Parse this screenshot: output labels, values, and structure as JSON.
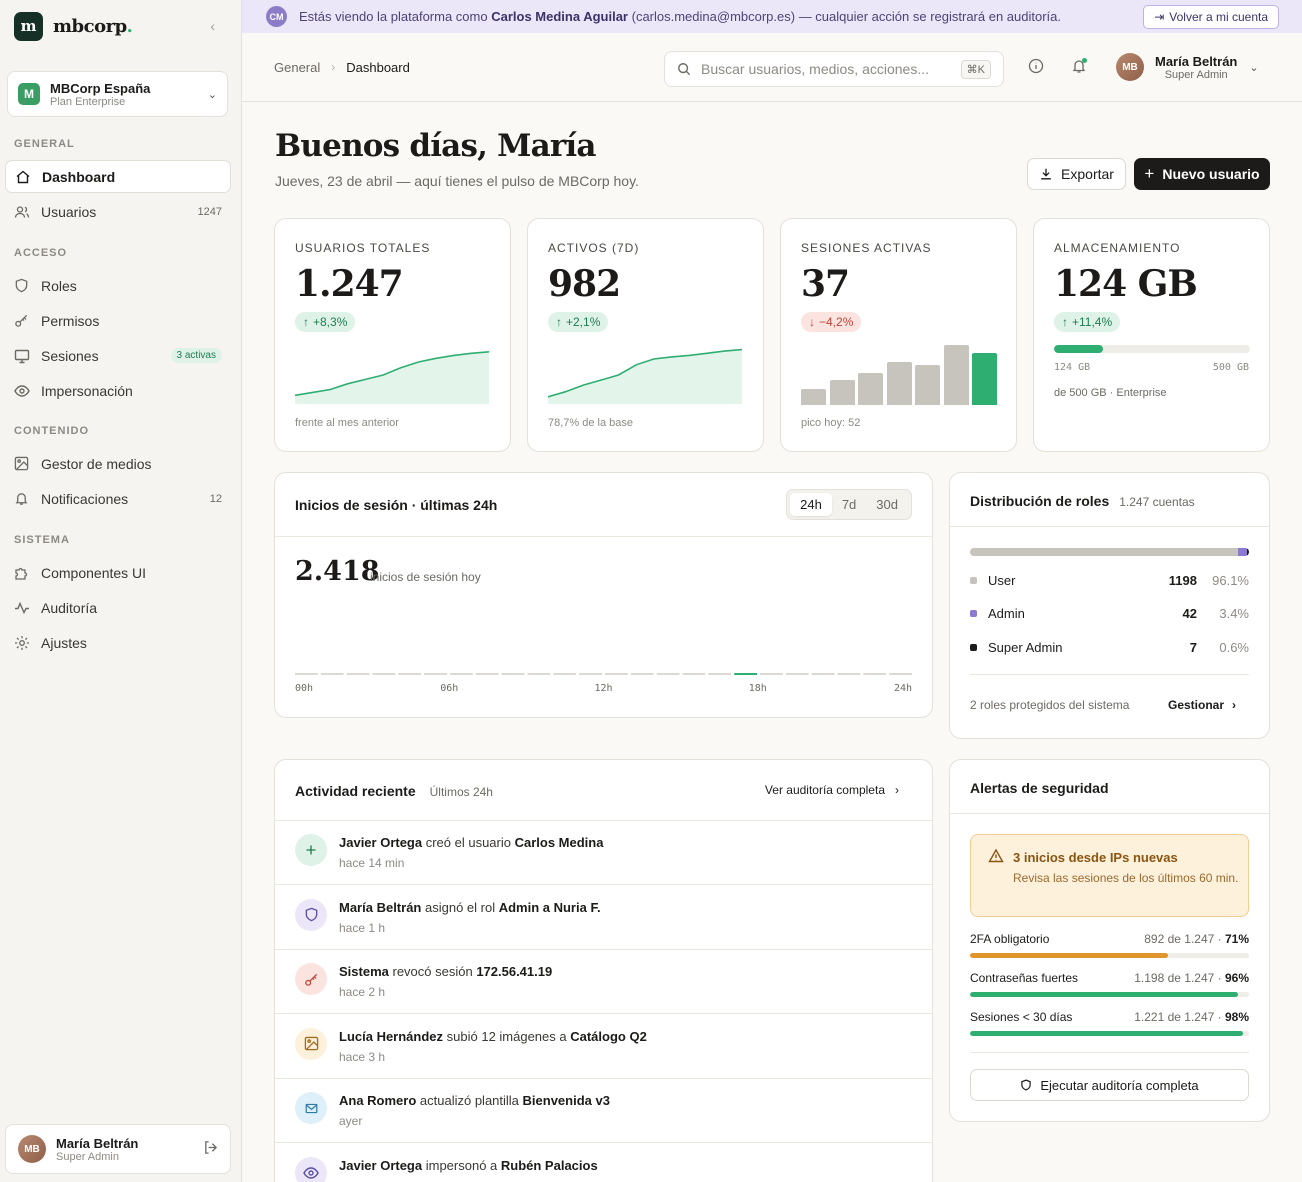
{
  "app": {
    "logo_letter": "m",
    "logo_name": "mbcorp",
    "logo_dot": "."
  },
  "org": {
    "badge": "M",
    "name": "MBCorp España",
    "plan": "Plan Enterprise"
  },
  "sidebar": {
    "sections": [
      {
        "title": "GENERAL",
        "items": [
          {
            "label": "Dashboard",
            "icon": "home-icon",
            "active": true
          },
          {
            "label": "Usuarios",
            "icon": "users-icon",
            "count": "1247"
          }
        ]
      },
      {
        "title": "ACCESO",
        "items": [
          {
            "label": "Roles",
            "icon": "shield-icon"
          },
          {
            "label": "Permisos",
            "icon": "key-icon"
          },
          {
            "label": "Sesiones",
            "icon": "monitor-icon",
            "pill": "3 activas"
          },
          {
            "label": "Impersonación",
            "icon": "eye-icon"
          }
        ]
      },
      {
        "title": "CONTENIDO",
        "items": [
          {
            "label": "Gestor de medios",
            "icon": "image-icon"
          },
          {
            "label": "Notificaciones",
            "icon": "bell-icon",
            "count": "12"
          }
        ]
      },
      {
        "title": "SISTEMA",
        "items": [
          {
            "label": "Componentes UI",
            "icon": "puzzle-icon"
          },
          {
            "label": "Auditoría",
            "icon": "activity-icon"
          },
          {
            "label": "Ajustes",
            "icon": "gear-icon"
          }
        ]
      }
    ],
    "user": {
      "initials": "MB",
      "name": "María Beltrán",
      "role": "Super Admin"
    }
  },
  "banner": {
    "initials": "CM",
    "text_pre": "Estás viendo la plataforma como ",
    "name": "Carlos Medina Aguilar",
    "text_post": " (carlos.medina@mbcorp.es) — cualquier acción se registrará en auditoría.",
    "button": "Volver a mi cuenta"
  },
  "topbar": {
    "crumb_root": "General",
    "crumb_current": "Dashboard",
    "search_placeholder": "Buscar usuarios, medios, acciones...",
    "shortcut": "⌘K",
    "user": {
      "initials": "MB",
      "name": "María Beltrán",
      "role": "Super Admin"
    }
  },
  "header": {
    "greeting": "Buenos días, María",
    "subtitle": "Jueves, 23 de abril — aquí tienes el pulso de MBCorp hoy.",
    "export_label": "Exportar",
    "new_user_label": "Nuevo usuario"
  },
  "stats": [
    {
      "label": "USUARIOS TOTALES",
      "value": "1.247",
      "delta": "+8,3%",
      "trend": "up",
      "foot": "frente al mes anterior",
      "spark": [
        12,
        16,
        20,
        28,
        34,
        40,
        50,
        58,
        63,
        67,
        70,
        72
      ]
    },
    {
      "label": "ACTIVOS (7D)",
      "value": "982",
      "delta": "+2,1%",
      "trend": "up",
      "foot": "78,7% de la base",
      "spark": [
        10,
        17,
        26,
        33,
        40,
        54,
        62,
        65,
        67,
        70,
        73,
        75
      ]
    },
    {
      "label": "SESIONES ACTIVAS",
      "value": "37",
      "delta": "−4,2%",
      "trend": "down",
      "foot": "pico hoy: 52",
      "bars": [
        14,
        22,
        28,
        37,
        35,
        52,
        45
      ]
    },
    {
      "label": "ALMACENAMIENTO",
      "value": "124 GB",
      "delta": "+11,4%",
      "trend": "up",
      "min": "124 GB",
      "max": "500 GB",
      "foot": "de 500 GB · Enterprise",
      "used_fraction": 0.248
    }
  ],
  "logins": {
    "title": "Inicios de sesión · últimas 24h",
    "ranges": [
      "24h",
      "7d",
      "30d"
    ],
    "active_range": "24h",
    "total": "2.418",
    "total_label": "inicios de sesión hoy",
    "ticks": [
      "00h",
      "06h",
      "12h",
      "18h",
      "24h"
    ],
    "highlight_index": 17,
    "bar_count": 24
  },
  "roles": {
    "title": "Distribución de roles",
    "subtitle": "1.247 cuentas",
    "items": [
      {
        "name": "User",
        "count": "1198",
        "pct": "96.1%",
        "color": "#c6c4bd",
        "share": 96.1
      },
      {
        "name": "Admin",
        "count": "42",
        "pct": "3.4%",
        "color": "#8a7bd1",
        "share": 3.4
      },
      {
        "name": "Super Admin",
        "count": "7",
        "pct": "0.6%",
        "color": "#1c1b19",
        "share": 0.6
      }
    ],
    "foot": "2 roles protegidos del sistema",
    "manage": "Gestionar"
  },
  "activity": {
    "title": "Actividad reciente",
    "subtitle": "Últimos 24h",
    "link": "Ver auditoría completa",
    "items": [
      {
        "actor": "Javier Ortega",
        "action": " creó el usuario ",
        "target": "Carlos Medina",
        "time": "hace 14 min",
        "icon": "plus-icon",
        "bg": "#dff2e7",
        "fg": "#1f7d4f"
      },
      {
        "actor": "María Beltrán",
        "action": " asignó el rol ",
        "target": "Admin a Nuria F.",
        "time": "hace 1 h",
        "icon": "shield-icon",
        "bg": "#ebe6f8",
        "fg": "#5b4fa0"
      },
      {
        "actor": "Sistema",
        "action": " revocó sesión ",
        "target": "172.56.41.19",
        "time": "hace 2 h",
        "icon": "key-icon",
        "bg": "#fbe3e0",
        "fg": "#c0463a"
      },
      {
        "actor": "Lucía Hernández",
        "action": " subió 12 imágenes a ",
        "target": "Catálogo Q2",
        "time": "hace 3 h",
        "icon": "image-icon",
        "bg": "#fdf1dc",
        "fg": "#a46a1c"
      },
      {
        "actor": "Ana Romero",
        "action": " actualizó plantilla ",
        "target": "Bienvenida v3",
        "time": "ayer",
        "icon": "mail-icon",
        "bg": "#def0fa",
        "fg": "#2f79a8"
      },
      {
        "actor": "Javier Ortega",
        "action": " impersonó a ",
        "target": "Rubén Palacios",
        "time": "",
        "icon": "eye-icon",
        "bg": "#ebe6f8",
        "fg": "#5b4fa0"
      }
    ]
  },
  "security": {
    "title": "Alertas de seguridad",
    "alert_title": "3 inicios desde IPs nuevas",
    "alert_desc": "Revisa las sesiones de los últimos 60 min.",
    "meters": [
      {
        "label": "2FA obligatorio",
        "value": "892 de 1.247 · ",
        "pct": "71%",
        "fraction": 0.71,
        "color": "#e0962c"
      },
      {
        "label": "Contraseñas fuertes",
        "value": "1.198 de 1.247 · ",
        "pct": "96%",
        "fraction": 0.96,
        "color": "#2fae72"
      },
      {
        "label": "Sesiones < 30 días",
        "value": "1.221 de 1.247 · ",
        "pct": "98%",
        "fraction": 0.98,
        "color": "#2fae72"
      }
    ],
    "button": "Ejecutar auditoría completa"
  }
}
